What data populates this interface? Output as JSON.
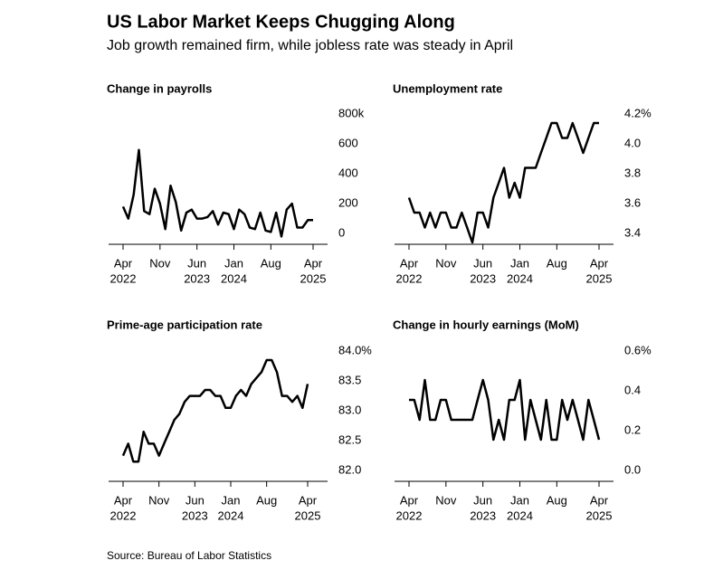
{
  "title": "US Labor Market Keeps Chugging Along",
  "subtitle": "Job growth remained firm, while jobless rate was steady in April",
  "source": "Source: Bureau of Labor Statistics",
  "chart_data": [
    {
      "type": "line",
      "title": "Change in payrolls",
      "categories": [
        [
          "Apr",
          "2022"
        ],
        null,
        null,
        null,
        null,
        null,
        null,
        [
          "Nov"
        ],
        null,
        null,
        null,
        null,
        null,
        null,
        [
          "Jun",
          "2023"
        ],
        null,
        null,
        null,
        null,
        null,
        null,
        [
          "Jan",
          "2024"
        ],
        null,
        null,
        null,
        null,
        null,
        null,
        [
          "Aug"
        ],
        null,
        null,
        null,
        null,
        null,
        null,
        null,
        [
          "Apr",
          "2025"
        ]
      ],
      "series": [
        {
          "name": "Change in payrolls",
          "color": "#000000",
          "values": [
            240,
            160,
            320,
            620,
            210,
            190,
            360,
            260,
            90,
            380,
            270,
            80,
            200,
            220,
            160,
            160,
            170,
            210,
            120,
            200,
            190,
            90,
            220,
            190,
            100,
            90,
            200,
            80,
            70,
            200,
            40,
            220,
            260,
            100,
            100,
            150,
            150
          ]
        }
      ],
      "ylim": [
        0,
        800
      ],
      "yticks": [
        0,
        200,
        400,
        600,
        {
          "value": 800,
          "label": "800k"
        }
      ]
    },
    {
      "type": "line",
      "title": "Unemployment rate",
      "categories": [
        [
          "Apr",
          "2022"
        ],
        null,
        null,
        null,
        null,
        null,
        null,
        [
          "Nov"
        ],
        null,
        null,
        null,
        null,
        null,
        null,
        [
          "Jun",
          "2023"
        ],
        null,
        null,
        null,
        null,
        null,
        null,
        [
          "Jan",
          "2024"
        ],
        null,
        null,
        null,
        null,
        null,
        null,
        [
          "Aug"
        ],
        null,
        null,
        null,
        null,
        null,
        null,
        null,
        [
          "Apr",
          "2025"
        ]
      ],
      "series": [
        {
          "name": "Unemployment rate",
          "color": "#000000",
          "values": [
            3.7,
            3.6,
            3.6,
            3.5,
            3.6,
            3.5,
            3.6,
            3.6,
            3.5,
            3.5,
            3.6,
            3.5,
            3.4,
            3.6,
            3.6,
            3.5,
            3.7,
            3.8,
            3.9,
            3.7,
            3.8,
            3.7,
            3.9,
            3.9,
            3.9,
            4.0,
            4.1,
            4.2,
            4.2,
            4.1,
            4.1,
            4.2,
            4.1,
            4.0,
            4.1,
            4.2,
            4.2
          ]
        }
      ],
      "ylim": [
        3.4,
        4.2
      ],
      "yticks": [
        3.4,
        3.6,
        3.8,
        {
          "value": 4.0,
          "label": "4.0"
        },
        {
          "value": 4.2,
          "label": "4.2%"
        }
      ]
    },
    {
      "type": "line",
      "title": "Prime-age participation rate",
      "categories": [
        [
          "Apr",
          "2022"
        ],
        null,
        null,
        null,
        null,
        null,
        null,
        [
          "Nov"
        ],
        null,
        null,
        null,
        null,
        null,
        null,
        [
          "Jun",
          "2023"
        ],
        null,
        null,
        null,
        null,
        null,
        null,
        [
          "Jan",
          "2024"
        ],
        null,
        null,
        null,
        null,
        null,
        null,
        [
          "Aug"
        ],
        null,
        null,
        null,
        null,
        null,
        null,
        null,
        [
          "Apr",
          "2025"
        ]
      ],
      "series": [
        {
          "name": "Prime-age participation rate",
          "color": "#000000",
          "values": [
            82.4,
            82.6,
            82.3,
            82.3,
            82.8,
            82.6,
            82.6,
            82.4,
            82.6,
            82.8,
            83.0,
            83.1,
            83.3,
            83.4,
            83.4,
            83.4,
            83.5,
            83.5,
            83.4,
            83.4,
            83.2,
            83.2,
            83.4,
            83.5,
            83.4,
            83.6,
            83.7,
            83.8,
            84.0,
            84.0,
            83.8,
            83.4,
            83.4,
            83.3,
            83.4,
            83.2,
            83.6
          ]
        }
      ],
      "ylim": [
        82.0,
        84.0
      ],
      "yticks": [
        {
          "value": 82.0,
          "label": "82.0"
        },
        82.5,
        {
          "value": 83.0,
          "label": "83.0"
        },
        83.5,
        {
          "value": 84.0,
          "label": "84.0%"
        }
      ]
    },
    {
      "type": "line",
      "title": "Change in hourly earnings (MoM)",
      "categories": [
        [
          "Apr",
          "2022"
        ],
        null,
        null,
        null,
        null,
        null,
        null,
        [
          "Nov"
        ],
        null,
        null,
        null,
        null,
        null,
        null,
        [
          "Jun",
          "2023"
        ],
        null,
        null,
        null,
        null,
        null,
        null,
        [
          "Jan",
          "2024"
        ],
        null,
        null,
        null,
        null,
        null,
        null,
        [
          "Aug"
        ],
        null,
        null,
        null,
        null,
        null,
        null,
        null,
        [
          "Apr",
          "2025"
        ]
      ],
      "series": [
        {
          "name": "Change in hourly earnings (MoM)",
          "color": "#000000",
          "values": [
            0.4,
            0.4,
            0.3,
            0.5,
            0.3,
            0.3,
            0.4,
            0.4,
            0.3,
            0.3,
            0.3,
            0.3,
            0.3,
            0.4,
            0.5,
            0.4,
            0.2,
            0.3,
            0.2,
            0.4,
            0.4,
            0.5,
            0.2,
            0.4,
            0.3,
            0.2,
            0.4,
            0.2,
            0.2,
            0.4,
            0.3,
            0.4,
            0.3,
            0.2,
            0.4,
            0.3,
            0.2
          ]
        }
      ],
      "ylim": [
        0.0,
        0.6
      ],
      "yticks": [
        {
          "value": 0.0,
          "label": "0.0"
        },
        0.2,
        0.4,
        {
          "value": 0.6,
          "label": "0.6%"
        }
      ]
    }
  ]
}
